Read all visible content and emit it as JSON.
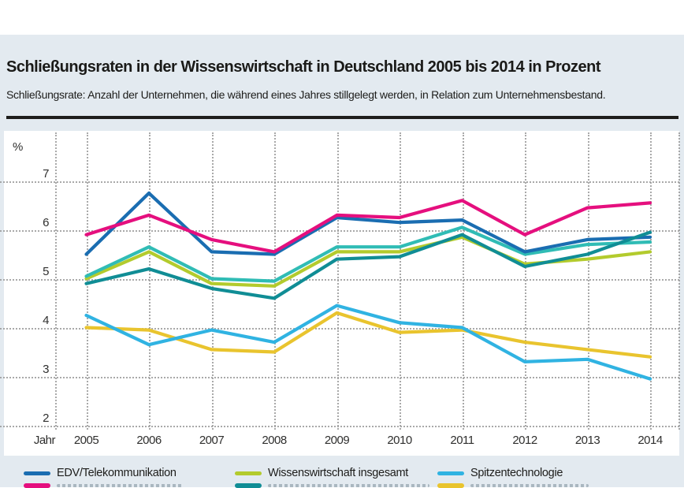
{
  "header": {
    "title": "Schließungsraten in der Wissenswirtschaft in Deutschland 2005 bis 2014 in Prozent",
    "subtitle": "Schließungsrate: Anzahl der Unternehmen, die während eines Jahres stillgelegt werden, in Relation zum Unternehmensbestand."
  },
  "chart_data": {
    "type": "line",
    "unit_label": "%",
    "x_axis_label": "Jahr",
    "categories": [
      "2005",
      "2006",
      "2007",
      "2008",
      "2009",
      "2010",
      "2011",
      "2012",
      "2013",
      "2014"
    ],
    "y_ticks": [
      7,
      6,
      5,
      4,
      3,
      2
    ],
    "ylim": [
      2,
      7.6
    ],
    "grid": "dotted",
    "legend_position": "bottom",
    "series": [
      {
        "key": "yellow",
        "name": "",
        "color_name": "yellow",
        "color": "#e9c42e",
        "in_legend": false,
        "values": [
          4.0,
          3.95,
          3.55,
          3.5,
          4.3,
          3.9,
          3.95,
          3.7,
          3.55,
          3.4
        ]
      },
      {
        "key": "spitzen",
        "name": "Spitzentechnologie",
        "color_name": "cyan",
        "color": "#30b3e2",
        "in_legend": true,
        "values": [
          4.25,
          3.65,
          3.95,
          3.7,
          4.45,
          4.1,
          4.0,
          3.3,
          3.35,
          2.95
        ]
      },
      {
        "key": "wiwi",
        "name": "Wissenswirtschaft insgesamt",
        "color_name": "yellow-green",
        "color": "#b3cb2d",
        "in_legend": true,
        "values": [
          5.0,
          5.55,
          4.9,
          4.85,
          5.55,
          5.55,
          5.85,
          5.3,
          5.4,
          5.55
        ]
      },
      {
        "key": "lightteal",
        "name": "",
        "color_name": "turquoise",
        "color": "#30bcb5",
        "in_legend": false,
        "values": [
          5.05,
          5.65,
          5.0,
          4.95,
          5.65,
          5.65,
          6.05,
          5.5,
          5.7,
          5.75
        ]
      },
      {
        "key": "edv",
        "name": "EDV/Telekommunikation",
        "color_name": "dark-blue",
        "color": "#1a6db1",
        "in_legend": true,
        "values": [
          5.5,
          6.75,
          5.55,
          5.5,
          6.25,
          6.15,
          6.2,
          5.55,
          5.8,
          5.85
        ]
      },
      {
        "key": "darkteal",
        "name": "",
        "color_name": "dark-teal",
        "color": "#108d95",
        "in_legend": false,
        "values": [
          4.9,
          5.2,
          4.8,
          4.6,
          5.4,
          5.45,
          5.9,
          5.25,
          5.5,
          5.95
        ]
      },
      {
        "key": "pink",
        "name": "",
        "color_name": "pink",
        "color": "#e50f7e",
        "in_legend": false,
        "values": [
          5.9,
          6.3,
          5.8,
          5.55,
          6.3,
          6.25,
          6.6,
          5.9,
          6.45,
          6.55
        ]
      }
    ]
  },
  "legend": {
    "items": [
      {
        "label": "EDV/Telekommunikation",
        "color": "#1a6db1"
      },
      {
        "label": "Wissenswirtschaft insgesamt",
        "color": "#b3cb2d"
      },
      {
        "label": "Spitzentechnologie",
        "color": "#30b3e2"
      }
    ],
    "second_row_cut_off": true,
    "row2_swatch_colors": [
      "#e50f7e",
      "#108d95",
      "#e9c42e"
    ]
  },
  "colors": {
    "panel_background": "#e3eaf0",
    "plot_background": "#ffffff",
    "gridline": "#9b9b9b",
    "text": "#1d1d1b",
    "divider": "#1d1d1b"
  }
}
